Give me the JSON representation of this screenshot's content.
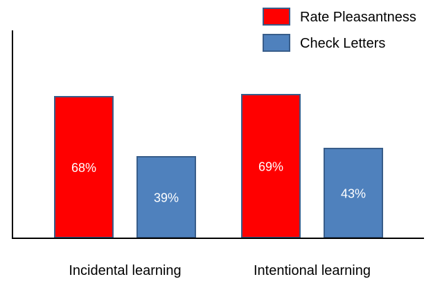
{
  "chart_data": {
    "type": "bar",
    "title": "",
    "xlabel": "",
    "ylabel": "",
    "categories": [
      "Incidental learning",
      "Intentional learning"
    ],
    "series": [
      {
        "name": "Rate Pleasantness",
        "values": [
          68,
          69
        ],
        "labels": [
          "68%",
          "69%"
        ],
        "color": "#ff0000"
      },
      {
        "name": "Check Letters",
        "values": [
          39,
          43
        ],
        "labels": [
          "39%",
          "43%"
        ],
        "color": "#4f81bd"
      }
    ],
    "ylim": [
      0,
      100
    ],
    "grid": false,
    "y_ticks_shown": false,
    "legend": "top-right",
    "border_color": "#385d8a",
    "label_color": "#ffffff"
  }
}
